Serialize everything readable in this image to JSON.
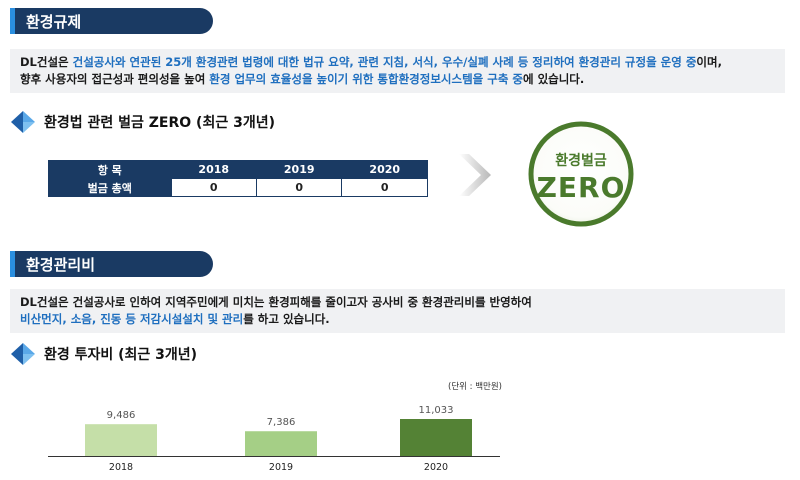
{
  "section1": {
    "title": "환경규제",
    "p1": [
      "DL건설은 ",
      "건설공사와 연관된 25개 환경관련 법령에 대한 법규 요약, 관련 지침, 서식, 우수/실폐 사례 등 정리하여 환경관리 규정을 운영 중",
      "이며,"
    ],
    "p2": [
      "향후 사용자의 접근성과 편의성을 높여 ",
      "환경 업무의 효율성을 높이기 위한 통합환경정보시스템을 구축 중",
      "에 있습니다."
    ]
  },
  "fines": {
    "subtitle": "환경법 관련 벌금 ZERO (최근 3개년)",
    "headers": [
      "항 목",
      "2018",
      "2019",
      "2020"
    ],
    "row_label": "벌금 총액",
    "values": [
      "0",
      "0",
      "0"
    ],
    "badge_top": "환경벌금",
    "badge_main": "ZERO"
  },
  "section2": {
    "title": "환경관리비",
    "p1": "DL건설은 건설공사로 인하여 지역주민에게 미치는 환경피해를 줄이고자 공사비 중 환경관리비를 반영하여",
    "p2": [
      "비산먼지, 소음, 진동 등 저감시설설치 및 관리",
      "를 하고 있습니다."
    ]
  },
  "investment": {
    "subtitle": "환경 투자비 (최근 3개년)",
    "unit": "(단위 : 백만원)"
  },
  "chart_data": {
    "type": "bar",
    "categories": [
      "2018",
      "2019",
      "2020"
    ],
    "values": [
      9486,
      7386,
      11033
    ],
    "data_labels": [
      "9,486",
      "7,386",
      "11,033"
    ],
    "colors": [
      "#c5dfa8",
      "#a5cf86",
      "#548235"
    ],
    "title": "",
    "xlabel": "",
    "ylabel": "",
    "ylim": [
      0,
      11033
    ]
  }
}
